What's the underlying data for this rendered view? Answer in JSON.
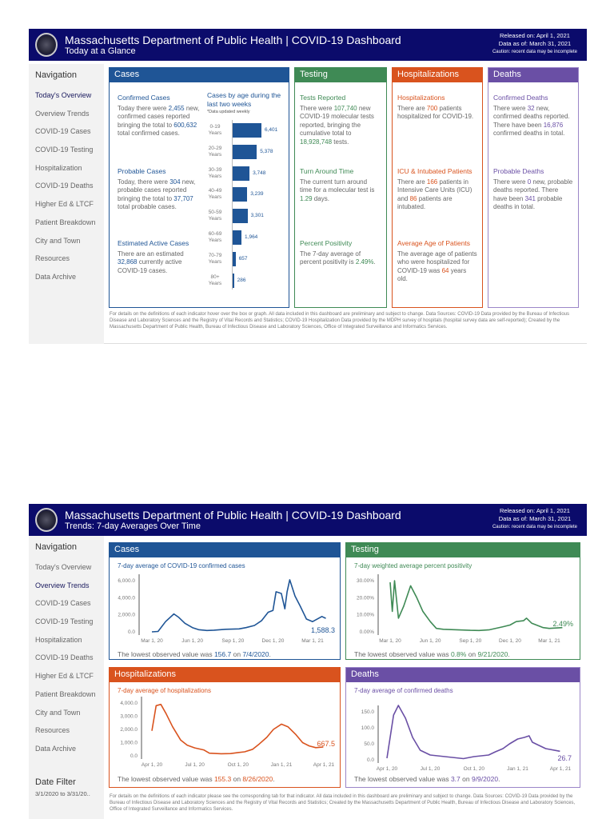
{
  "header": {
    "title": "Massachusetts Department of Public Health  |  COVID-19 Dashboard",
    "released": "Released on: April 1, 2021",
    "data_as_of": "Data as of: March 31, 2021",
    "caution": "Caution: recent data may be incomplete"
  },
  "colors": {
    "header": "#0b0b6b",
    "cases": "#1f5596",
    "testing": "#3f8a55",
    "hospitalizations": "#d9531e",
    "deaths": "#6a4fa5"
  },
  "nav": {
    "heading": "Navigation",
    "items": [
      "Today's Overview",
      "Overview Trends",
      "COVID-19 Cases",
      "COVID-19 Testing",
      "Hospitalization",
      "COVID-19 Deaths",
      "Higher Ed & LTCF",
      "Patient Breakdown",
      "City and Town",
      "Resources",
      "Data Archive"
    ]
  },
  "page1": {
    "subtitle": "Today at a Glance",
    "active_nav": "Today's Overview",
    "cases": {
      "header": "Cases",
      "confirmed": {
        "title": "Confirmed Cases",
        "p1": "Today there were ",
        "new": "2,455",
        "p2": " new, confirmed cases reported bringing the total to ",
        "total": "600,632",
        "p3": " total confirmed cases."
      },
      "probable": {
        "title": "Probable Cases",
        "p1": "Today, there were ",
        "new": "304",
        "p2": " new, probable cases reported bringing the total to ",
        "total": "37,707",
        "p3": " total probable cases."
      },
      "active": {
        "title": "Estimated Active Cases",
        "p1": "There are an estimated ",
        "value": "32,868",
        "p2": " currently active COVID-19 cases."
      },
      "age_chart": {
        "title": "Cases by age during the last two weeks",
        "note": "*Data updated weekly",
        "groups": [
          {
            "age": "0-19",
            "unit": "Years",
            "value": 6401,
            "label": "6,401"
          },
          {
            "age": "20-29",
            "unit": "Years",
            "value": 5378,
            "label": "5,378"
          },
          {
            "age": "30-39",
            "unit": "Years",
            "value": 3748,
            "label": "3,748"
          },
          {
            "age": "40-49",
            "unit": "Years",
            "value": 3239,
            "label": "3,239"
          },
          {
            "age": "50-59",
            "unit": "Years",
            "value": 3301,
            "label": "3,301"
          },
          {
            "age": "60-69",
            "unit": "Years",
            "value": 1964,
            "label": "1,964"
          },
          {
            "age": "70-79",
            "unit": "Years",
            "value": 657,
            "label": "657"
          },
          {
            "age": "80+",
            "unit": "Years",
            "value": 286,
            "label": "286"
          }
        ]
      }
    },
    "testing": {
      "header": "Testing",
      "reported": {
        "title": "Tests Reported",
        "p1": "There were ",
        "new": "107,740",
        "p2": " new COVID-19 molecular tests reported, bringing the cumulative total to ",
        "total": "18,928,748",
        "p3": " tests."
      },
      "turnaround": {
        "title": "Turn Around Time",
        "p1": "The current turn around time for a molecular test is ",
        "value": "1.29",
        "p2": " days."
      },
      "positivity": {
        "title": "Percent Positivity",
        "p1": "The 7-day average of percent positivity is ",
        "value": "2.49%",
        "p2": "."
      }
    },
    "hospitalizations": {
      "header": "Hospitalizations",
      "hosp": {
        "title": "Hospitalizations",
        "p1": "There are ",
        "value": "700",
        "p2": " patients hospitalized for COVID-19."
      },
      "icu": {
        "title": "ICU & Intubated Patients",
        "p1": "There are ",
        "icu": "166",
        "p2": " patients in Intensive Care Units (ICU) and ",
        "intubated": "86",
        "p3": " patients are intubated."
      },
      "age": {
        "title": "Average Age of Patients",
        "p1": "The average age of patients who were hospitalized for COVID-19 was ",
        "value": "64",
        "p2": " years old."
      }
    },
    "deaths": {
      "header": "Deaths",
      "confirmed": {
        "title": "Confirmed Deaths",
        "p1": "There were ",
        "new": "32",
        "p2": " new, confirmed deaths reported. There have been ",
        "total": "16,876",
        "p3": " confirmed deaths in total."
      },
      "probable": {
        "title": "Probable Deaths",
        "p1": "There were ",
        "new": "0",
        "p2": " new, probable deaths reported. There have been ",
        "total": "341",
        "p3": " probable deaths in total."
      }
    },
    "footnote": "For details on the definitions of each indicator hover over the box or graph. All data included in this dashboard are preliminary and subject to change. Data Sources: COVID-19 Data provided by the Bureau of Infectious Disease and Laboratory Sciences and the Registry of Vital Records and Statistics; COVID-19 Hospitalization Data provided by the MDPH survey of hospitals (hospital survey data are self-reported); Created by the Massachusetts Department of Public Health, Bureau of Infectious Disease and Laboratory Sciences, Office of Integrated Surveillance and Informatics Services."
  },
  "page2": {
    "subtitle": "Trends: 7-day Averages Over Time",
    "active_nav": "Overview Trends",
    "date_filter": {
      "label": "Date Filter",
      "value": "3/1/2020 to 3/31/20.."
    },
    "footnote": "For details on the definitions of each indicator please see the corresponding tab for that indicator. All data included in this dashboard are preliminary and subject to change. Data Sources: COVID-19 Data provided by the Bureau of Infectious Disease and Laboratory Sciences and the Registry of Vital Records and Statistics; Created by the Massachusetts Department of Public Health, Bureau of Infectious Disease and Laboratory Sciences, Office of Integrated Surveillance and Informatics Services.",
    "panels": {
      "cases": {
        "header": "Cases",
        "summary": {
          "p1": "The lowest observed value was ",
          "value": "156.7",
          "p2": " on ",
          "date": "7/4/2020",
          "p3": "."
        }
      },
      "testing": {
        "header": "Testing",
        "summary": {
          "p1": "The lowest observed value was ",
          "value": "0.8%",
          "p2": " on ",
          "date": "9/21/2020",
          "p3": "."
        }
      },
      "hospitalizations": {
        "header": "Hospitalizations",
        "summary": {
          "p1": "The lowest observed value was ",
          "value": "155.3",
          "p2": " on ",
          "date": "8/26/2020",
          "p3": "."
        }
      },
      "deaths": {
        "header": "Deaths",
        "summary": {
          "p1": "The lowest observed value was ",
          "value": "3.7",
          "p2": " on ",
          "date": "9/9/2020",
          "p3": "."
        }
      }
    }
  },
  "chart_data": [
    {
      "id": "cases",
      "type": "line",
      "title": "7-day average of COVID-19 confirmed cases",
      "ylim": [
        0,
        6000
      ],
      "y_ticks": [
        0,
        2000,
        4000,
        6000
      ],
      "y_tick_labels": [
        "0.0",
        "2,000.0",
        "4,000.0",
        "6,000.0"
      ],
      "x_ticks": [
        "2020-03-01",
        "2020-06-01",
        "2020-09-01",
        "2020-12-01",
        "2021-03-01"
      ],
      "x_tick_labels": [
        "Mar 1, 20",
        "Jun 1, 20",
        "Sep 1, 20",
        "Dec 1, 20",
        "Mar 1, 21"
      ],
      "last_label": "1,588.3",
      "points": [
        [
          "2020-03-01",
          0
        ],
        [
          "2020-03-15",
          50
        ],
        [
          "2020-04-01",
          1200
        ],
        [
          "2020-04-20",
          2100
        ],
        [
          "2020-05-01",
          1700
        ],
        [
          "2020-05-15",
          1000
        ],
        [
          "2020-06-01",
          500
        ],
        [
          "2020-06-15",
          250
        ],
        [
          "2020-07-04",
          157
        ],
        [
          "2020-07-20",
          200
        ],
        [
          "2020-08-15",
          300
        ],
        [
          "2020-09-15",
          350
        ],
        [
          "2020-10-01",
          500
        ],
        [
          "2020-10-20",
          750
        ],
        [
          "2020-11-05",
          1300
        ],
        [
          "2020-11-20",
          2300
        ],
        [
          "2020-12-01",
          2500
        ],
        [
          "2020-12-08",
          4700
        ],
        [
          "2020-12-20",
          4500
        ],
        [
          "2020-12-28",
          2700
        ],
        [
          "2021-01-02",
          4700
        ],
        [
          "2021-01-08",
          6100
        ],
        [
          "2021-01-20",
          4200
        ],
        [
          "2021-02-01",
          3000
        ],
        [
          "2021-02-15",
          1500
        ],
        [
          "2021-03-01",
          1200
        ],
        [
          "2021-03-22",
          1800
        ],
        [
          "2021-03-31",
          1588.3
        ]
      ]
    },
    {
      "id": "testing",
      "type": "line",
      "title": "7-day weighted average percent positivity",
      "ylim": [
        0,
        30
      ],
      "y_ticks": [
        0,
        10,
        20,
        30
      ],
      "y_tick_labels": [
        "0.00%",
        "10.00%",
        "20.00%",
        "30.00%"
      ],
      "x_ticks": [
        "2020-03-01",
        "2020-06-01",
        "2020-09-01",
        "2020-12-01",
        "2021-03-01"
      ],
      "x_tick_labels": [
        "Mar 1, 20",
        "Jun 1, 20",
        "Sep 1, 20",
        "Dec 1, 20",
        "Mar 1, 21"
      ],
      "last_label": "2.49%",
      "points": [
        [
          "2020-03-01",
          29
        ],
        [
          "2020-03-06",
          12
        ],
        [
          "2020-03-11",
          30
        ],
        [
          "2020-03-20",
          8
        ],
        [
          "2020-04-01",
          15
        ],
        [
          "2020-04-17",
          27
        ],
        [
          "2020-05-01",
          20
        ],
        [
          "2020-05-15",
          12
        ],
        [
          "2020-06-01",
          6
        ],
        [
          "2020-06-15",
          2
        ],
        [
          "2020-07-01",
          1.5
        ],
        [
          "2020-08-01",
          1.2
        ],
        [
          "2020-09-01",
          0.9
        ],
        [
          "2020-09-21",
          0.8
        ],
        [
          "2020-10-15",
          1.2
        ],
        [
          "2020-11-15",
          3
        ],
        [
          "2020-12-01",
          4
        ],
        [
          "2020-12-15",
          6
        ],
        [
          "2021-01-01",
          6.5
        ],
        [
          "2021-01-08",
          8
        ],
        [
          "2021-01-20",
          5
        ],
        [
          "2021-02-15",
          2.5
        ],
        [
          "2021-03-01",
          2
        ],
        [
          "2021-03-31",
          2.49
        ]
      ]
    },
    {
      "id": "hospitalizations",
      "type": "line",
      "title": "7-day average of hospitalizations",
      "ylim": [
        0,
        4000
      ],
      "y_ticks": [
        0,
        1000,
        2000,
        3000,
        4000
      ],
      "y_tick_labels": [
        "0.0",
        "1,000.0",
        "2,000.0",
        "3,000.0",
        "4,000.0"
      ],
      "x_ticks": [
        "2020-04-01",
        "2020-07-01",
        "2020-10-01",
        "2021-01-01",
        "2021-04-01"
      ],
      "x_tick_labels": [
        "Apr 1, 20",
        "Jul 1, 20",
        "Oct 1, 20",
        "Jan 1, 21",
        "Apr 1, 21"
      ],
      "last_label": "667.5",
      "points": [
        [
          "2020-04-01",
          1900
        ],
        [
          "2020-04-10",
          3800
        ],
        [
          "2020-04-20",
          3900
        ],
        [
          "2020-05-01",
          3200
        ],
        [
          "2020-05-15",
          2200
        ],
        [
          "2020-06-01",
          1200
        ],
        [
          "2020-06-15",
          800
        ],
        [
          "2020-07-01",
          600
        ],
        [
          "2020-07-20",
          450
        ],
        [
          "2020-08-01",
          200
        ],
        [
          "2020-08-26",
          155.3
        ],
        [
          "2020-09-15",
          170
        ],
        [
          "2020-10-01",
          250
        ],
        [
          "2020-10-15",
          300
        ],
        [
          "2020-11-01",
          500
        ],
        [
          "2020-11-15",
          900
        ],
        [
          "2020-12-01",
          1400
        ],
        [
          "2020-12-15",
          2000
        ],
        [
          "2021-01-01",
          2400
        ],
        [
          "2021-01-15",
          2200
        ],
        [
          "2021-02-01",
          1600
        ],
        [
          "2021-02-15",
          1000
        ],
        [
          "2021-03-01",
          750
        ],
        [
          "2021-03-15",
          620
        ],
        [
          "2021-03-31",
          667.5
        ]
      ]
    },
    {
      "id": "deaths",
      "type": "line",
      "title": "7-day average of confirmed deaths",
      "ylim": [
        0,
        150
      ],
      "y_ticks": [
        0,
        50,
        100,
        150
      ],
      "y_tick_labels": [
        "0.0",
        "50.0",
        "100.0",
        "150.0"
      ],
      "x_ticks": [
        "2020-04-01",
        "2020-07-01",
        "2020-10-01",
        "2021-01-01",
        "2021-04-01"
      ],
      "x_tick_labels": [
        "Apr 1, 20",
        "Jul 1, 20",
        "Oct 1, 20",
        "Jan 1, 21",
        "Apr 1, 21"
      ],
      "last_label": "26.7",
      "points": [
        [
          "2020-04-01",
          5
        ],
        [
          "2020-04-15",
          140
        ],
        [
          "2020-04-25",
          170
        ],
        [
          "2020-05-10",
          130
        ],
        [
          "2020-05-25",
          70
        ],
        [
          "2020-06-10",
          30
        ],
        [
          "2020-07-01",
          15
        ],
        [
          "2020-08-01",
          10
        ],
        [
          "2020-09-09",
          3.7
        ],
        [
          "2020-10-01",
          10
        ],
        [
          "2020-11-01",
          15
        ],
        [
          "2020-11-15",
          25
        ],
        [
          "2020-12-01",
          35
        ],
        [
          "2020-12-15",
          50
        ],
        [
          "2021-01-01",
          65
        ],
        [
          "2021-01-15",
          70
        ],
        [
          "2021-01-25",
          75
        ],
        [
          "2021-02-01",
          55
        ],
        [
          "2021-02-15",
          45
        ],
        [
          "2021-03-01",
          35
        ],
        [
          "2021-03-31",
          26.7
        ]
      ]
    }
  ]
}
